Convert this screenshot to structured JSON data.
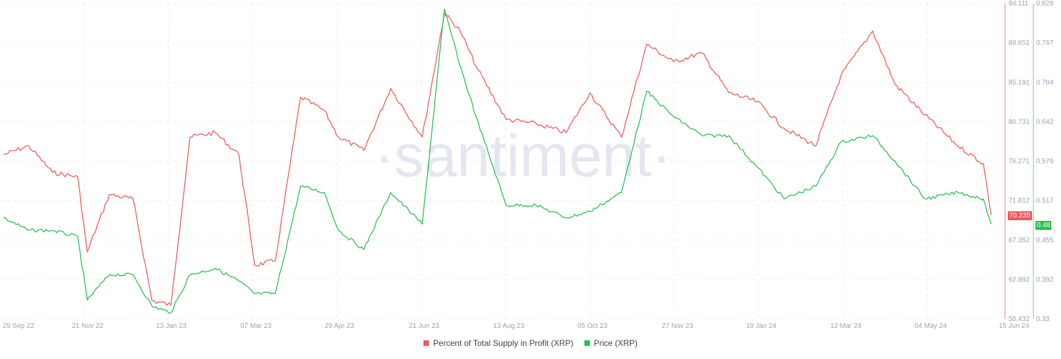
{
  "watermark": "·santiment·",
  "legend": [
    {
      "label": "Percent of Total Supply in Profit (XRP)",
      "color": "#f05a5a"
    },
    {
      "label": "Price (XRP)",
      "color": "#26c152"
    }
  ],
  "badges": {
    "profit_current": "70.235",
    "price_current": "0.48"
  },
  "chart_data": {
    "type": "line",
    "title": "",
    "xlabel": "",
    "x_ticks": [
      "29 Sep 22",
      "21 Nov 22",
      "13 Jan 23",
      "07 Mar 23",
      "29 Apr 23",
      "21 Jun 23",
      "13 Aug 23",
      "05 Oct 23",
      "27 Nov 23",
      "19 Jan 24",
      "12 Mar 24",
      "04 May 24",
      "15 Jun 24"
    ],
    "y_left": {
      "label": "Percent of Total Supply in Profit (XRP)",
      "ticks": [
        "94.111",
        "89.651",
        "85.191",
        "80.731",
        "76.271",
        "71.812",
        "67.352",
        "62.892",
        "58.432"
      ],
      "range": [
        58.432,
        94.111
      ],
      "color": "#f05a5a"
    },
    "y_right": {
      "label": "Price (XRP)",
      "ticks": [
        "0.829",
        "0.767",
        "0.704",
        "0.642",
        "0.579",
        "0.517",
        "0.455",
        "0.392",
        "0.33"
      ],
      "range": [
        0.33,
        0.829
      ],
      "color": "#26c152"
    },
    "grid": true,
    "legend_position": "bottom",
    "series": [
      {
        "name": "Percent of Total Supply in Profit (XRP)",
        "axis": "left",
        "color": "#f05a5a",
        "x": [
          "29 Sep 22",
          "15 Oct 22",
          "30 Oct 22",
          "15 Nov 22",
          "21 Nov 22",
          "05 Dec 22",
          "20 Dec 22",
          "01 Jan 23",
          "13 Jan 23",
          "25 Jan 23",
          "10 Feb 23",
          "25 Feb 23",
          "07 Mar 23",
          "20 Mar 23",
          "05 Apr 23",
          "20 Apr 23",
          "29 Apr 23",
          "15 May 23",
          "01 Jun 23",
          "21 Jun 23",
          "05 Jul 23",
          "15 Jul 23",
          "25 Jul 23",
          "13 Aug 23",
          "01 Sep 23",
          "20 Sep 23",
          "05 Oct 23",
          "25 Oct 23",
          "10 Nov 23",
          "27 Nov 23",
          "15 Dec 23",
          "01 Jan 24",
          "19 Jan 24",
          "05 Feb 24",
          "25 Feb 24",
          "12 Mar 24",
          "01 Apr 24",
          "15 Apr 24",
          "04 May 24",
          "25 May 24",
          "10 Jun 24",
          "15 Jun 24"
        ],
        "values": [
          77.0,
          78.0,
          75.0,
          74.5,
          66.0,
          72.5,
          72.0,
          60.5,
          60.0,
          79.0,
          79.5,
          77.0,
          64.5,
          65.0,
          83.5,
          82.0,
          79.0,
          77.5,
          84.5,
          79.0,
          93.0,
          91.0,
          87.0,
          81.0,
          80.5,
          79.5,
          84.0,
          79.0,
          89.5,
          87.5,
          88.5,
          84.0,
          83.0,
          80.0,
          78.0,
          86.0,
          91.0,
          85.0,
          81.5,
          78.0,
          76.0,
          70.2
        ]
      },
      {
        "name": "Price (XRP)",
        "axis": "right",
        "color": "#26c152",
        "x": [
          "29 Sep 22",
          "15 Oct 22",
          "30 Oct 22",
          "15 Nov 22",
          "21 Nov 22",
          "05 Dec 22",
          "20 Dec 22",
          "01 Jan 23",
          "13 Jan 23",
          "25 Jan 23",
          "10 Feb 23",
          "25 Feb 23",
          "07 Mar 23",
          "20 Mar 23",
          "05 Apr 23",
          "20 Apr 23",
          "29 Apr 23",
          "15 May 23",
          "01 Jun 23",
          "21 Jun 23",
          "05 Jul 23",
          "15 Jul 23",
          "25 Jul 23",
          "13 Aug 23",
          "01 Sep 23",
          "20 Sep 23",
          "05 Oct 23",
          "25 Oct 23",
          "10 Nov 23",
          "27 Nov 23",
          "15 Dec 23",
          "01 Jan 24",
          "19 Jan 24",
          "05 Feb 24",
          "25 Feb 24",
          "12 Mar 24",
          "01 Apr 24",
          "15 Apr 24",
          "04 May 24",
          "25 May 24",
          "10 Jun 24",
          "15 Jun 24"
        ],
        "values": [
          0.49,
          0.47,
          0.47,
          0.46,
          0.36,
          0.4,
          0.4,
          0.35,
          0.34,
          0.4,
          0.41,
          0.39,
          0.37,
          0.37,
          0.54,
          0.53,
          0.47,
          0.44,
          0.53,
          0.48,
          0.82,
          0.73,
          0.65,
          0.51,
          0.51,
          0.49,
          0.5,
          0.53,
          0.69,
          0.65,
          0.62,
          0.62,
          0.57,
          0.52,
          0.54,
          0.61,
          0.62,
          0.58,
          0.52,
          0.53,
          0.52,
          0.48
        ]
      }
    ]
  }
}
